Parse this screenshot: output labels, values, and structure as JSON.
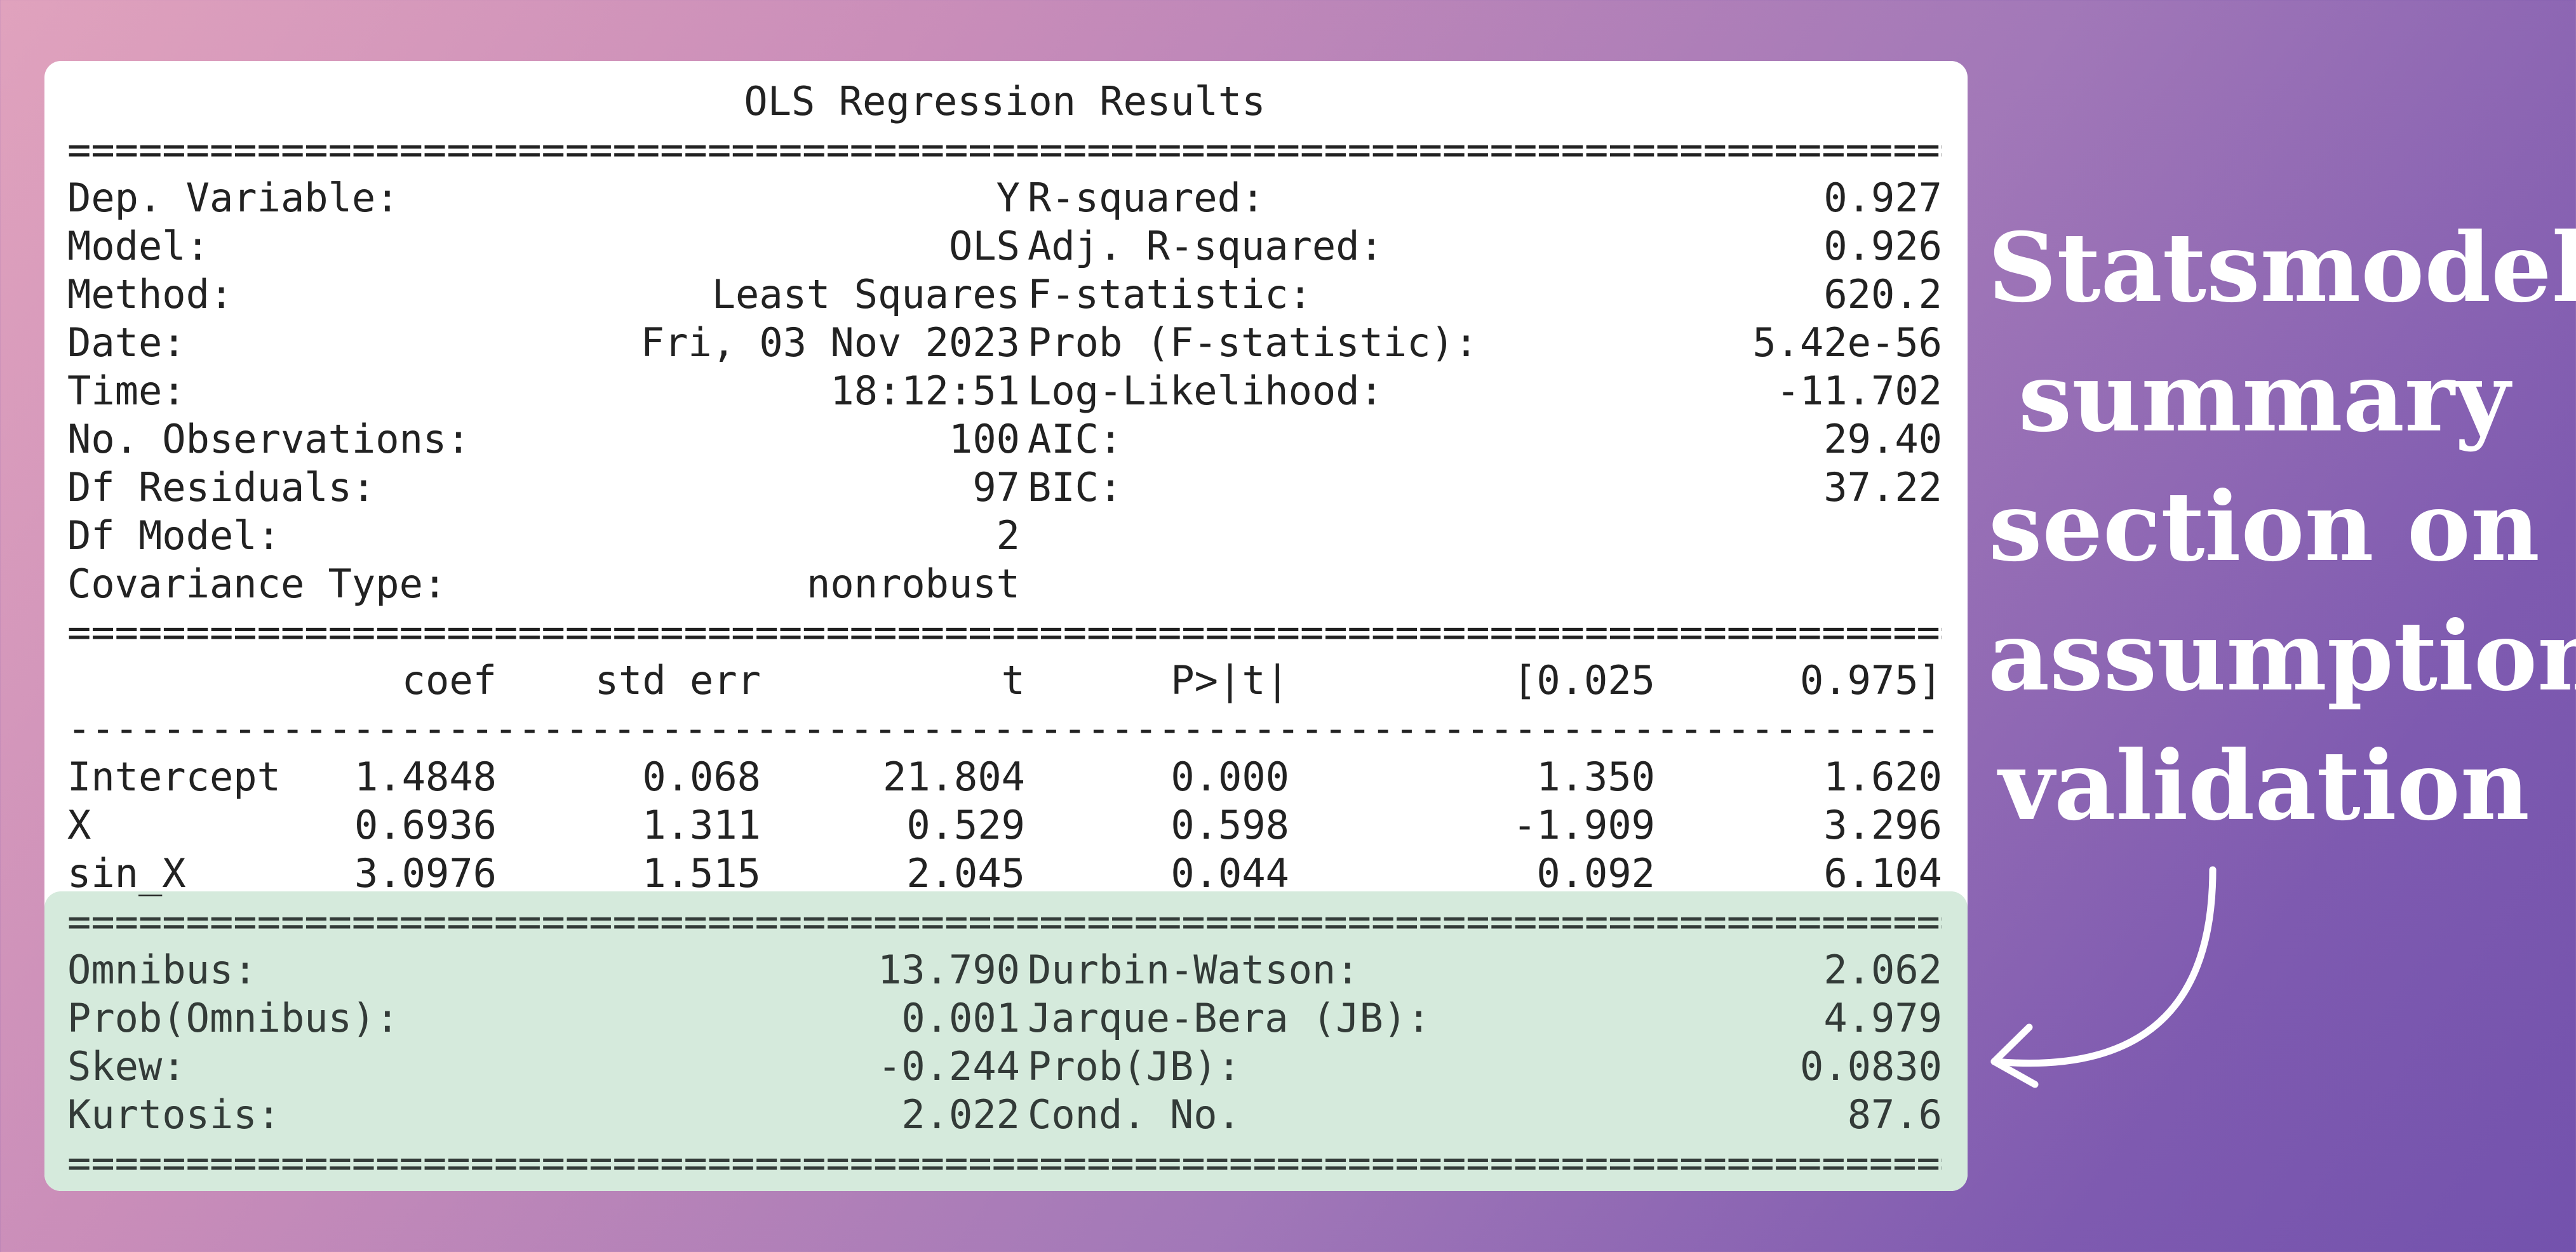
{
  "summary": {
    "title": "OLS Regression Results",
    "rule_double": "============================================================================================================================================",
    "rule_single": "--------------------------------------------------------------------------------------------------------------------------------------------",
    "model_info": [
      {
        "label": "Dep. Variable:",
        "value": "Y",
        "label2": "R-squared:",
        "value2": "0.927"
      },
      {
        "label": "Model:",
        "value": "OLS",
        "label2": "Adj. R-squared:",
        "value2": "0.926"
      },
      {
        "label": "Method:",
        "value": "Least Squares",
        "label2": "F-statistic:",
        "value2": "620.2"
      },
      {
        "label": "Date:",
        "value": "Fri, 03 Nov 2023",
        "label2": "Prob (F-statistic):",
        "value2": "5.42e-56"
      },
      {
        "label": "Time:",
        "value": "18:12:51",
        "label2": "Log-Likelihood:",
        "value2": "-11.702"
      },
      {
        "label": "No. Observations:",
        "value": "100",
        "label2": "AIC:",
        "value2": "29.40"
      },
      {
        "label": "Df Residuals:",
        "value": "97",
        "label2": "BIC:",
        "value2": "37.22"
      },
      {
        "label": "Df Model:",
        "value": "2",
        "label2": "",
        "value2": ""
      },
      {
        "label": "Covariance Type:",
        "value": "nonrobust",
        "label2": "",
        "value2": ""
      }
    ],
    "coef_header": [
      "",
      "coef",
      "std err",
      "t",
      "P>|t|",
      "[0.025",
      "0.975]"
    ],
    "coef_rows": [
      [
        "Intercept",
        "1.4848",
        "0.068",
        "21.804",
        "0.000",
        "1.350",
        "1.620"
      ],
      [
        "X",
        "0.6936",
        "1.311",
        "0.529",
        "0.598",
        "-1.909",
        "3.296"
      ],
      [
        "sin_X",
        "3.0976",
        "1.515",
        "2.045",
        "0.044",
        "0.092",
        "6.104"
      ]
    ],
    "diagnostics": [
      {
        "label": "Omnibus:",
        "value": "13.790",
        "label2": "Durbin-Watson:",
        "value2": "2.062"
      },
      {
        "label": "Prob(Omnibus):",
        "value": "0.001",
        "label2": "Jarque-Bera (JB):",
        "value2": "4.979"
      },
      {
        "label": "Skew:",
        "value": "-0.244",
        "label2": "Prob(JB):",
        "value2": "0.0830"
      },
      {
        "label": "Kurtosis:",
        "value": "2.022",
        "label2": "Cond. No.",
        "value2": "87.6"
      }
    ]
  },
  "caption": {
    "lines": [
      "Statsmodel",
      "summary",
      "section on",
      "assumption",
      "validation"
    ]
  },
  "colors": {
    "highlight": "#d5eadc",
    "caption_text": "#ffffff"
  }
}
